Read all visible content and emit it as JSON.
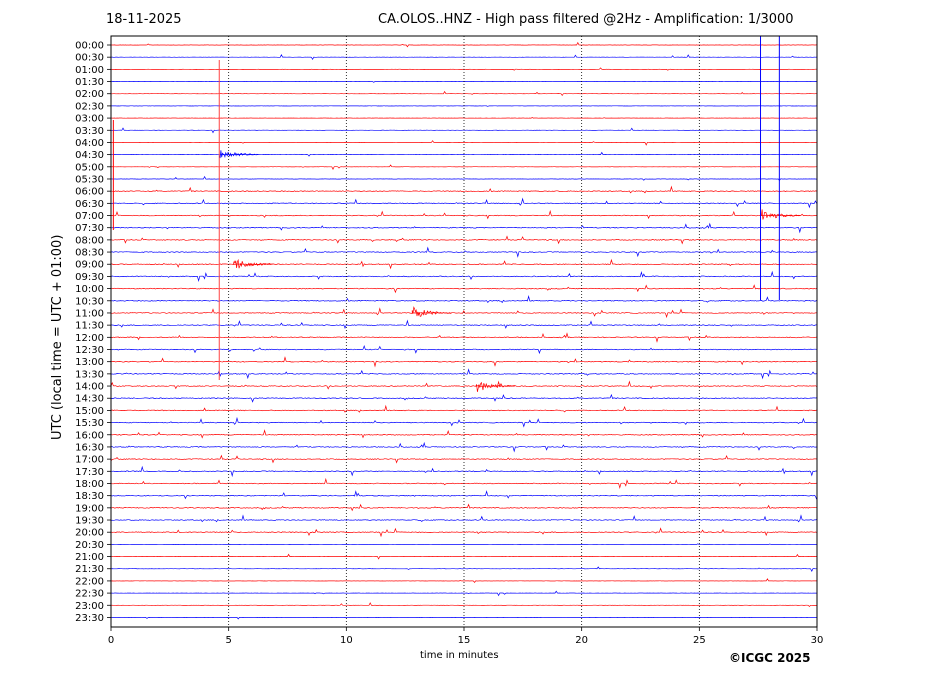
{
  "header": {
    "date": "18-11-2025",
    "title": "CA.OLOS..HNZ - High pass filtered @2Hz - Amplification: 1/3000"
  },
  "footer": {
    "copyright": "©ICGC 2025"
  },
  "chart_data": {
    "type": "line",
    "title": "CA.OLOS..HNZ - High pass filtered @2Hz - Amplification: 1/3000",
    "xlabel": "time in minutes",
    "ylabel": "UTC (local time = UTC + 01:00)",
    "xlim": [
      0,
      30
    ],
    "xticks": [
      0,
      5,
      10,
      15,
      20,
      25,
      30
    ],
    "yticks": [
      "00:00",
      "00:30",
      "01:00",
      "01:30",
      "02:00",
      "02:30",
      "03:00",
      "03:30",
      "04:00",
      "04:30",
      "05:00",
      "05:30",
      "06:00",
      "06:30",
      "07:00",
      "07:30",
      "08:00",
      "08:30",
      "09:00",
      "09:30",
      "10:00",
      "10:30",
      "11:00",
      "11:30",
      "12:00",
      "12:30",
      "13:00",
      "13:30",
      "14:00",
      "14:30",
      "15:00",
      "15:30",
      "16:00",
      "16:30",
      "17:00",
      "17:30",
      "18:00",
      "18:30",
      "19:00",
      "19:30",
      "20:00",
      "20:30",
      "21:00",
      "21:30",
      "22:00",
      "22:30",
      "23:00",
      "23:30"
    ],
    "trace_colors": [
      "#ff0000",
      "#0000ff"
    ],
    "vertical_grid": "dotted",
    "events": [
      {
        "row": "04:30",
        "minute": 4.6,
        "label": ""
      },
      {
        "row": "07:00",
        "minute": 27.6,
        "label": ""
      },
      {
        "row": "09:00",
        "minute": 5.2,
        "label": ""
      },
      {
        "row": "11:00",
        "minute": 12.8,
        "label": ""
      },
      {
        "row": "14:00",
        "minute": 15.5,
        "label": ""
      }
    ]
  }
}
